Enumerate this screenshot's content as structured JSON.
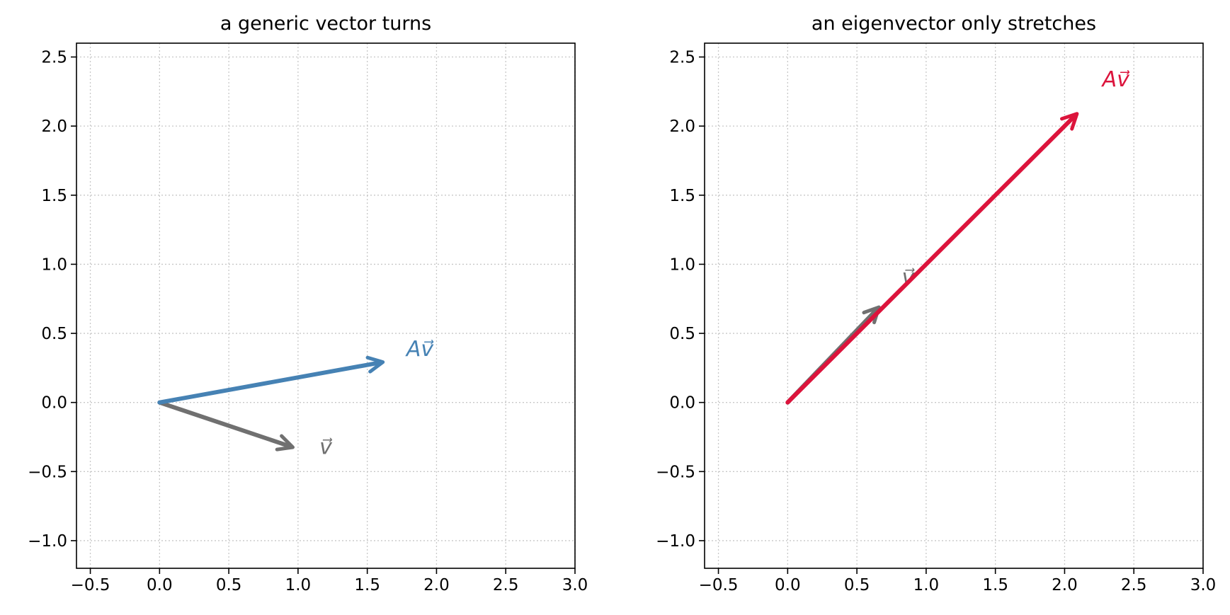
{
  "chart_data": [
    {
      "type": "vector",
      "title": "a generic vector turns",
      "xlim": [
        -0.6,
        3.0
      ],
      "ylim": [
        -1.2,
        2.6
      ],
      "xticks": [
        -0.5,
        0.0,
        0.5,
        1.0,
        1.5,
        2.0,
        2.5,
        3.0
      ],
      "yticks": [
        -1.0,
        -0.5,
        0.0,
        0.5,
        1.0,
        1.5,
        2.0,
        2.5
      ],
      "xtick_labels": [
        "−0.5",
        "0.0",
        "0.5",
        "1.0",
        "1.5",
        "2.0",
        "2.5",
        "3.0"
      ],
      "ytick_labels": [
        "−1.0",
        "−0.5",
        "0.0",
        "0.5",
        "1.0",
        "1.5",
        "2.0",
        "2.5"
      ],
      "grid": true,
      "vectors": [
        {
          "label": "v",
          "arrow_label": "v⃗",
          "from": [
            0,
            0
          ],
          "to": [
            0.95,
            -0.32
          ],
          "color": "#707070",
          "label_at": [
            1.2,
            -0.33
          ]
        },
        {
          "label": "Av",
          "arrow_label": "Av⃗",
          "from": [
            0,
            0
          ],
          "to": [
            1.6,
            0.29
          ],
          "color": "#4682b4",
          "label_at": [
            1.88,
            0.38
          ]
        }
      ]
    },
    {
      "type": "vector",
      "title": "an eigenvector only stretches",
      "xlim": [
        -0.6,
        3.0
      ],
      "ylim": [
        -1.2,
        2.6
      ],
      "xticks": [
        -0.5,
        0.0,
        0.5,
        1.0,
        1.5,
        2.0,
        2.5,
        3.0
      ],
      "yticks": [
        -1.0,
        -0.5,
        0.0,
        0.5,
        1.0,
        1.5,
        2.0,
        2.5
      ],
      "xtick_labels": [
        "−0.5",
        "0.0",
        "0.5",
        "1.0",
        "1.5",
        "2.0",
        "2.5",
        "3.0"
      ],
      "ytick_labels": [
        "−1.0",
        "−0.5",
        "0.0",
        "0.5",
        "1.0",
        "1.5",
        "2.0",
        "2.5"
      ],
      "grid": true,
      "vectors": [
        {
          "label": "v",
          "arrow_label": "v⃗",
          "from": [
            0,
            0
          ],
          "to": [
            0.65,
            0.68
          ],
          "color": "#707070",
          "label_at": [
            0.87,
            0.9
          ]
        },
        {
          "label": "Av",
          "arrow_label": "Av⃗",
          "from": [
            0,
            0
          ],
          "to": [
            2.08,
            2.08
          ],
          "color": "#dc143c",
          "label_at": [
            2.37,
            2.33
          ]
        }
      ]
    }
  ]
}
